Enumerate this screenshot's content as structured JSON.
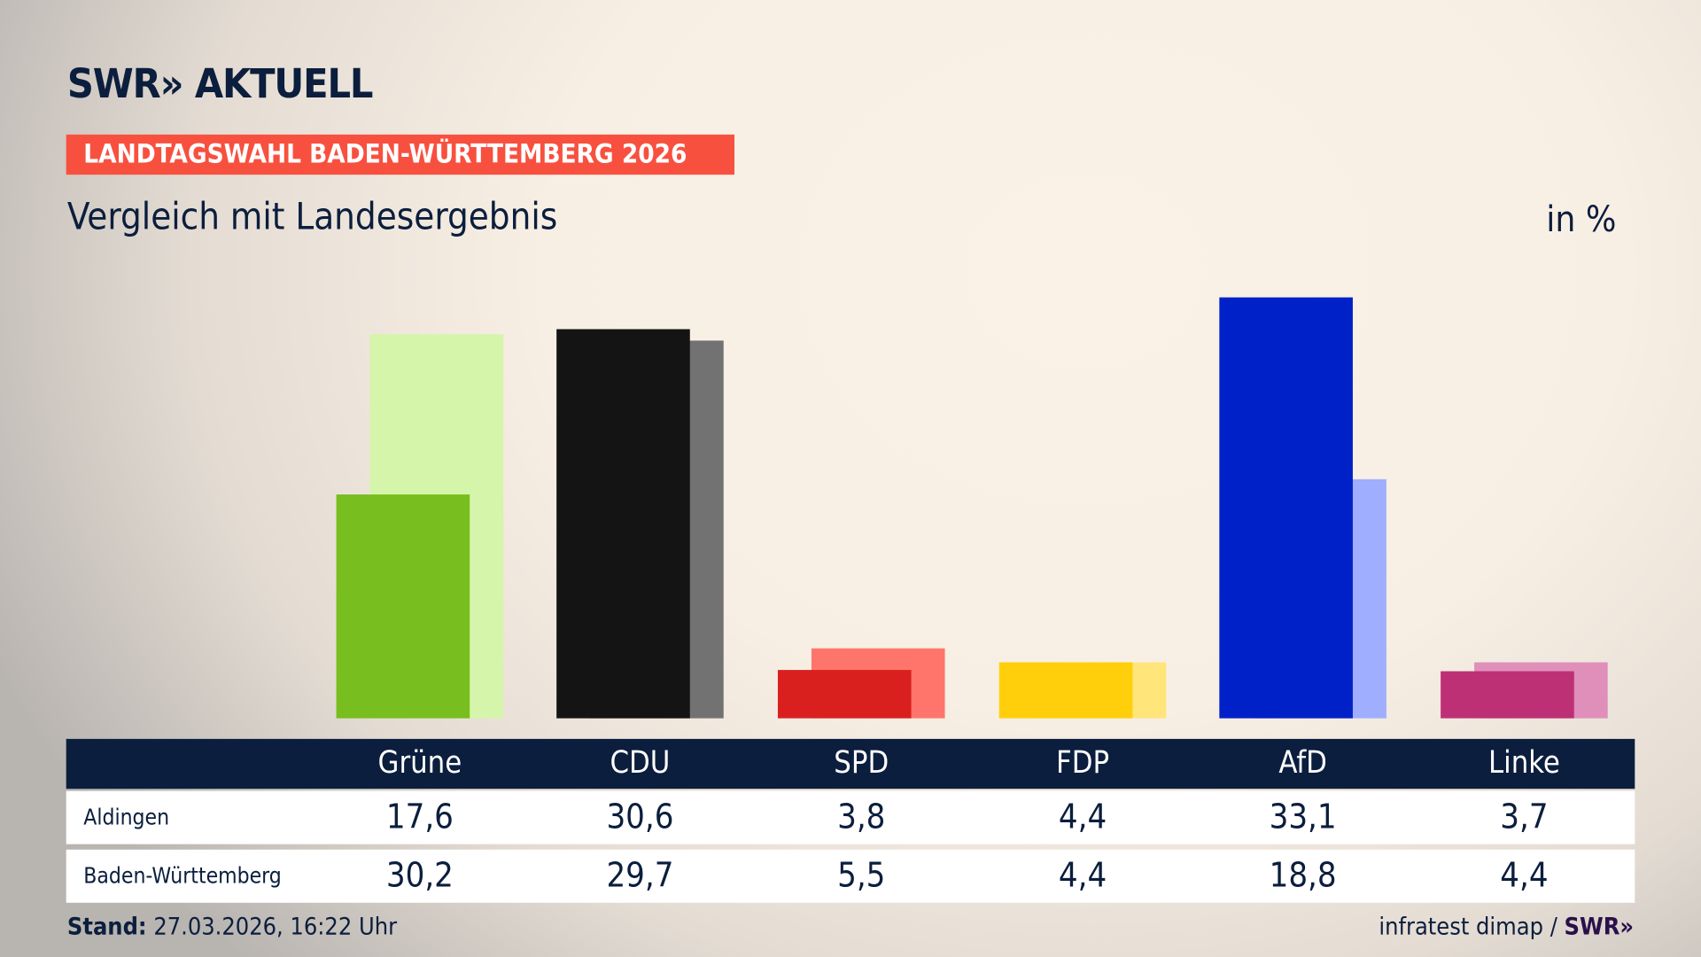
{
  "header": {
    "logo": "SWR» AKTUELL",
    "kicker": "LANDTAGSWAHL BADEN-WÜRTTEMBERG 2026",
    "subtitle": "Vergleich mit Landesergebnis",
    "unit": "in %"
  },
  "chart_data": {
    "type": "bar",
    "categories": [
      "Grüne",
      "CDU",
      "SPD",
      "FDP",
      "AfD",
      "Linke"
    ],
    "series": [
      {
        "name": "Aldingen",
        "values": [
          17.6,
          30.6,
          3.8,
          4.4,
          33.1,
          3.7
        ],
        "colors": [
          "#78be1e",
          "#141414",
          "#da1f1f",
          "#ffcf0b",
          "#0021c8",
          "#be3075"
        ]
      },
      {
        "name": "Baden-Württemberg",
        "values": [
          30.2,
          29.7,
          5.5,
          4.4,
          18.8,
          4.4
        ],
        "colors": [
          "#d5f5aa",
          "#737272",
          "#ff756b",
          "#ffe57a",
          "#9faeff",
          "#df8fba"
        ]
      }
    ],
    "ylim": [
      0,
      33.1
    ],
    "grid": false
  },
  "table": {
    "header_bg": "#0b1e3d"
  },
  "footer": {
    "stand_label": "Stand:",
    "stand_value": " 27.03.2026, 16:22 Uhr",
    "source": "infratest dimap / ",
    "source_logo": "SWR»"
  }
}
